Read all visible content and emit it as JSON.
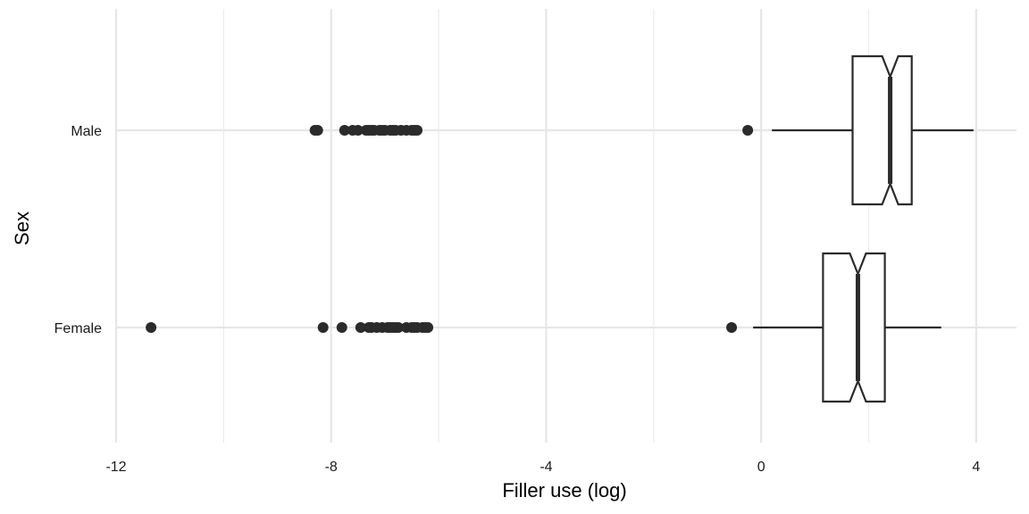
{
  "chart_data": {
    "type": "boxplot",
    "orientation": "horizontal",
    "notched": true,
    "xlabel": "Filler use (log)",
    "ylabel": "Sex",
    "xlim": [
      -12.0,
      4.75
    ],
    "x_ticks": [
      -12,
      -8,
      -4,
      0,
      4
    ],
    "x_tick_labels": [
      "-12",
      "-8",
      "-4",
      "0",
      "4"
    ],
    "grid": true,
    "legend": "none",
    "colors": {
      "box": "#2b2b2b",
      "points": "#2b2b2b",
      "grid": "#e6e6e6"
    },
    "categories": [
      "Female",
      "Male"
    ],
    "boxes": [
      {
        "category": "Female",
        "q1": 1.15,
        "median": 1.8,
        "q3": 2.3,
        "notch_low": 1.65,
        "notch_high": 1.95,
        "whisker_low": -0.15,
        "whisker_high": 3.35,
        "outliers": [
          -11.35,
          -8.15,
          -7.8,
          -7.45,
          -7.3,
          -7.25,
          -7.15,
          -7.05,
          -6.95,
          -6.9,
          -6.85,
          -6.8,
          -6.75,
          -6.6,
          -6.5,
          -6.45,
          -6.4,
          -6.3,
          -6.25,
          -6.2,
          -0.55
        ]
      },
      {
        "category": "Male",
        "q1": 1.7,
        "median": 2.4,
        "q3": 2.8,
        "notch_low": 2.25,
        "notch_high": 2.55,
        "whisker_low": 0.2,
        "whisker_high": 3.95,
        "outliers": [
          -8.3,
          -8.25,
          -7.75,
          -7.6,
          -7.5,
          -7.35,
          -7.3,
          -7.25,
          -7.2,
          -7.1,
          -7.05,
          -7.0,
          -6.9,
          -6.85,
          -6.8,
          -6.7,
          -6.6,
          -6.5,
          -6.45,
          -6.4,
          -0.25
        ]
      }
    ]
  }
}
